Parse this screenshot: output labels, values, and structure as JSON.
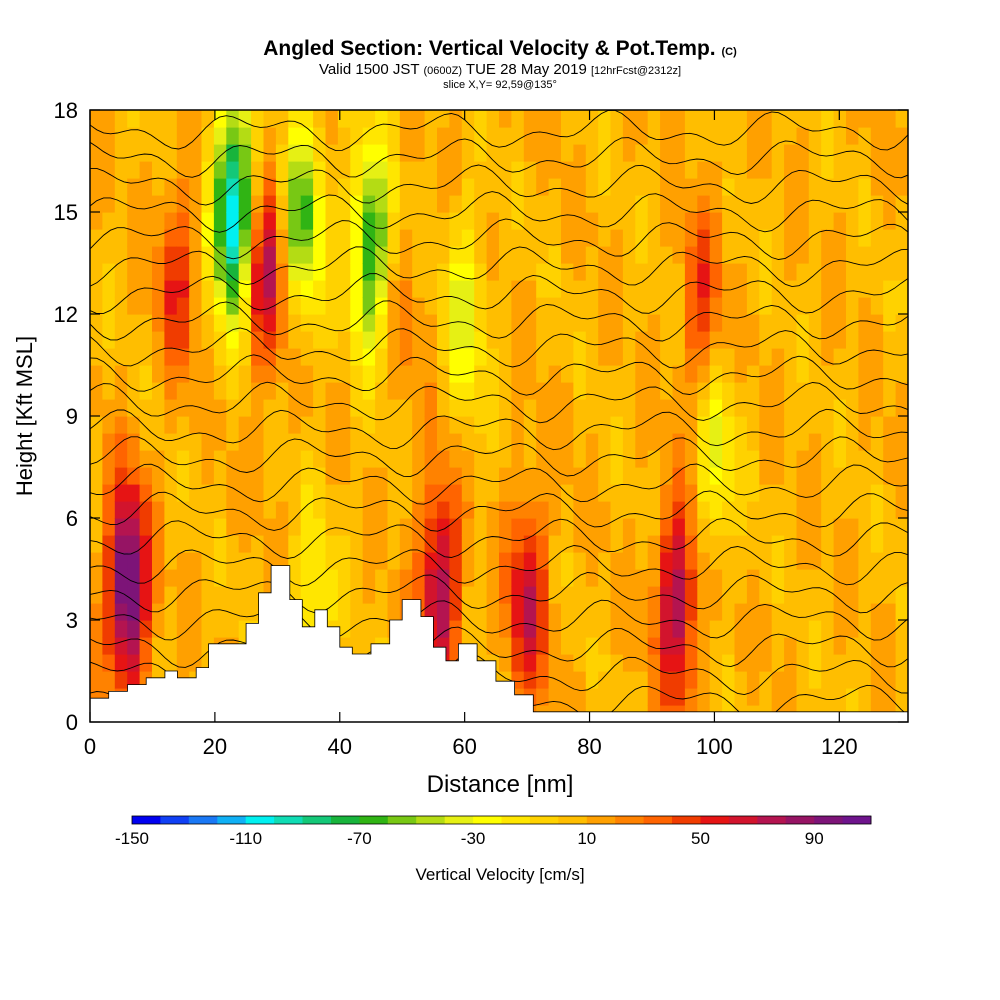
{
  "title": {
    "main": "Angled Section: Vertical Velocity & Pot.Temp.",
    "copyright": "(C)",
    "valid_prefix": "Valid 1500 JST",
    "utc": "(0600Z)",
    "valid_date": "TUE 28 May 2019",
    "forecast": "[12hrFcst@2312z]",
    "slice": "slice X,Y= 92,59@135°"
  },
  "chart_data": {
    "type": "heatmap",
    "xlabel": "Distance [nm]",
    "ylabel": "Height [Kft MSL]",
    "xlim": [
      0,
      131
    ],
    "ylim": [
      0,
      18
    ],
    "xticks": [
      0,
      20,
      40,
      60,
      80,
      100,
      120
    ],
    "yticks": [
      0,
      3,
      6,
      9,
      12,
      15,
      18
    ],
    "colorbar": {
      "label": "Vertical Velocity [cm/s]",
      "min": -150,
      "max": 110,
      "step": 10,
      "tick_labels": [
        -150,
        -110,
        -70,
        -30,
        10,
        50,
        90
      ],
      "colors": [
        "#0000f0",
        "#1040f5",
        "#1a78f5",
        "#10b0f5",
        "#00f0f0",
        "#10dcb4",
        "#14c878",
        "#18b43c",
        "#30b414",
        "#78c814",
        "#b4dc14",
        "#e6f014",
        "#ffff00",
        "#ffe600",
        "#ffd200",
        "#ffbe00",
        "#ffa000",
        "#ff8200",
        "#ff6400",
        "#f03c00",
        "#e61414",
        "#d2142d",
        "#b41450",
        "#961464",
        "#7d1478",
        "#6e148c"
      ]
    },
    "terrain_kft": [
      [
        0,
        0.7
      ],
      [
        3,
        0.9
      ],
      [
        6,
        1.1
      ],
      [
        9,
        1.3
      ],
      [
        12,
        1.5
      ],
      [
        14,
        1.3
      ],
      [
        17,
        1.6
      ],
      [
        19,
        2.3
      ],
      [
        22,
        2.3
      ],
      [
        25,
        2.9
      ],
      [
        27,
        3.8
      ],
      [
        29,
        4.6
      ],
      [
        32,
        3.6
      ],
      [
        34,
        2.8
      ],
      [
        36,
        3.3
      ],
      [
        38,
        2.8
      ],
      [
        40,
        2.2
      ],
      [
        42,
        2.0
      ],
      [
        45,
        2.3
      ],
      [
        48,
        3.0
      ],
      [
        50,
        3.6
      ],
      [
        53,
        3.1
      ],
      [
        55,
        2.2
      ],
      [
        57,
        1.8
      ],
      [
        59,
        2.3
      ],
      [
        62,
        1.8
      ],
      [
        65,
        1.2
      ],
      [
        68,
        0.8
      ],
      [
        71,
        0.3
      ],
      [
        80,
        0.3
      ],
      [
        131,
        0.3
      ]
    ],
    "updrafts": [
      {
        "x": 6,
        "z": 4.0,
        "w": 105
      },
      {
        "x": 28,
        "z": 13.5,
        "w": 70
      },
      {
        "x": 14,
        "z": 13.0,
        "w": 40
      },
      {
        "x": 56,
        "z": 4.0,
        "w": 75
      },
      {
        "x": 70,
        "z": 3.5,
        "w": 60
      },
      {
        "x": 94,
        "z": 3.5,
        "w": 75
      },
      {
        "x": 98,
        "z": 12.0,
        "w": 40
      },
      {
        "x": 50,
        "z": 12.0,
        "w": 15
      }
    ],
    "downdrafts": [
      {
        "x": 23,
        "z": 15.0,
        "w": -130
      },
      {
        "x": 34,
        "z": 15.0,
        "w": -70
      },
      {
        "x": 45,
        "z": 14.0,
        "w": -80
      },
      {
        "x": 60,
        "z": 12.0,
        "w": -40
      },
      {
        "x": 100,
        "z": 8.0,
        "w": -40
      },
      {
        "x": 36,
        "z": 3.5,
        "w": -30
      }
    ],
    "theta_isentropes_count": 22
  }
}
